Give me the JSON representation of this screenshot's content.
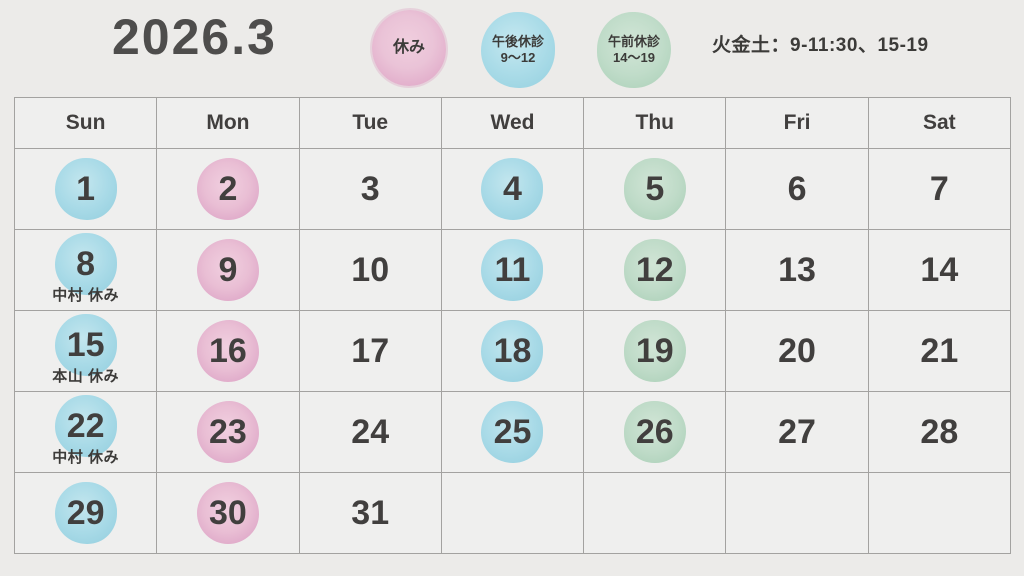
{
  "header": {
    "title": "2026.3",
    "hours_note": "火金土：9-11:30、15-19"
  },
  "legend": [
    {
      "key": "holiday",
      "label": "休み",
      "sub": "",
      "color": "#e6b7d0"
    },
    {
      "key": "pm-closed",
      "label": "午後休診",
      "sub": "9〜12",
      "color": "#a7dae6"
    },
    {
      "key": "am-closed",
      "label": "午前休診",
      "sub": "14〜19",
      "color": "#bad8c4"
    }
  ],
  "calendar": {
    "weekdays": [
      "Sun",
      "Mon",
      "Tue",
      "Wed",
      "Thu",
      "Fri",
      "Sat"
    ],
    "weeks": [
      [
        {
          "day": "1",
          "mark": "blue"
        },
        {
          "day": "2",
          "mark": "pink"
        },
        {
          "day": "3",
          "mark": "none"
        },
        {
          "day": "4",
          "mark": "blue"
        },
        {
          "day": "5",
          "mark": "green"
        },
        {
          "day": "6",
          "mark": "none"
        },
        {
          "day": "7",
          "mark": "none"
        }
      ],
      [
        {
          "day": "8",
          "mark": "blue",
          "note": "中村 休み"
        },
        {
          "day": "9",
          "mark": "pink"
        },
        {
          "day": "10",
          "mark": "none"
        },
        {
          "day": "11",
          "mark": "blue"
        },
        {
          "day": "12",
          "mark": "green"
        },
        {
          "day": "13",
          "mark": "none"
        },
        {
          "day": "14",
          "mark": "none"
        }
      ],
      [
        {
          "day": "15",
          "mark": "blue",
          "note": "本山 休み"
        },
        {
          "day": "16",
          "mark": "pink"
        },
        {
          "day": "17",
          "mark": "none"
        },
        {
          "day": "18",
          "mark": "blue"
        },
        {
          "day": "19",
          "mark": "green"
        },
        {
          "day": "20",
          "mark": "none"
        },
        {
          "day": "21",
          "mark": "none"
        }
      ],
      [
        {
          "day": "22",
          "mark": "blue",
          "note": "中村 休み"
        },
        {
          "day": "23",
          "mark": "pink"
        },
        {
          "day": "24",
          "mark": "none"
        },
        {
          "day": "25",
          "mark": "blue"
        },
        {
          "day": "26",
          "mark": "green"
        },
        {
          "day": "27",
          "mark": "none"
        },
        {
          "day": "28",
          "mark": "none"
        }
      ],
      [
        {
          "day": "29",
          "mark": "blue"
        },
        {
          "day": "30",
          "mark": "pink"
        },
        {
          "day": "31",
          "mark": "none"
        },
        {
          "day": "",
          "mark": "none"
        },
        {
          "day": "",
          "mark": "none"
        },
        {
          "day": "",
          "mark": "none"
        },
        {
          "day": "",
          "mark": "none"
        }
      ]
    ]
  },
  "colors": {
    "background": "#ecebe9",
    "cell_bg": "#efefee",
    "grid_line": "#a3a2a0",
    "text": "#413f3e",
    "mark_blue": "#a7dae6",
    "mark_pink": "#e6b7d0",
    "mark_green": "#bad8c4"
  }
}
